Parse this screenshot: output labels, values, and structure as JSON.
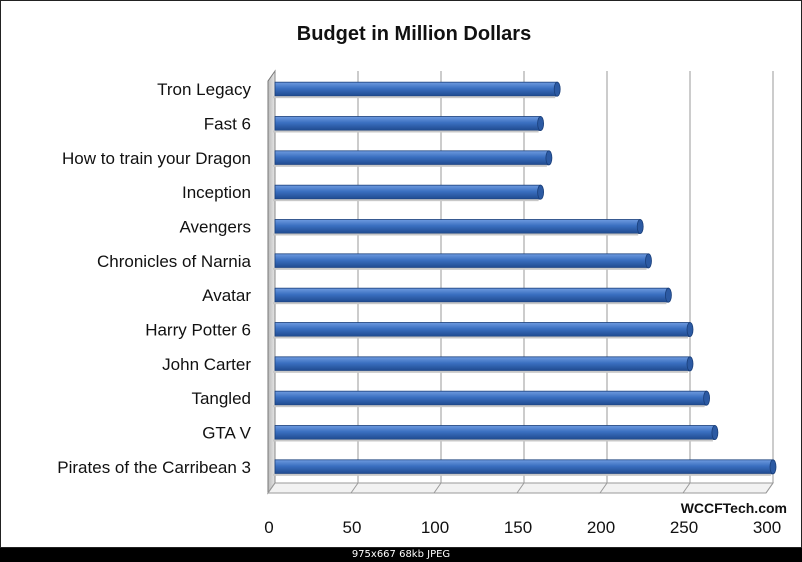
{
  "chart_data": {
    "type": "bar",
    "orientation": "horizontal",
    "title": "Budget in Million Dollars",
    "xlabel": "",
    "ylabel": "",
    "categories": [
      "Tron Legacy",
      "Fast 6",
      "How to train your Dragon",
      "Inception",
      "Avengers",
      "Chronicles of Narnia",
      "Avatar",
      "Harry Potter 6",
      "John Carter",
      "Tangled",
      "GTA V",
      "Pirates of the Carribean 3"
    ],
    "values": [
      170,
      160,
      165,
      160,
      220,
      225,
      237,
      250,
      250,
      260,
      265,
      300
    ],
    "xlim": [
      0,
      300
    ],
    "ticks": [
      "0",
      "50",
      "100",
      "150",
      "200",
      "250",
      "300"
    ],
    "tick_values": [
      0,
      50,
      100,
      150,
      200,
      250,
      300
    ],
    "grid": true,
    "legend": "none",
    "bar_color": "#3a6fc0",
    "watermark": "WCCFTech.com"
  },
  "footer": {
    "text": "975x667  68kb  JPEG"
  }
}
